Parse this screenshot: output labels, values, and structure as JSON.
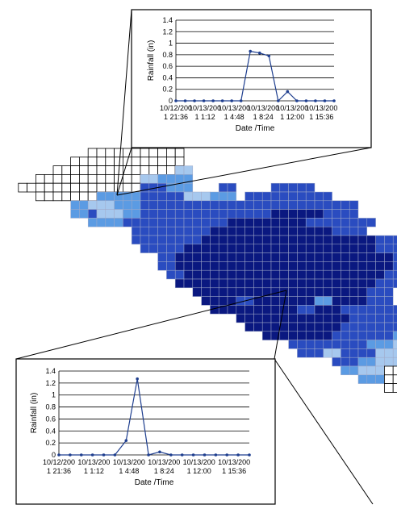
{
  "chart_data": [
    {
      "type": "line",
      "ylabel": "Rainfall (in)",
      "xlabel": "Date /Time",
      "ylim": [
        0,
        1.4
      ],
      "yticks": [
        "0",
        "0.2",
        "0.4",
        "0.6",
        "0.8",
        "1",
        "1.2",
        "1.4"
      ],
      "xtick_labels": [
        [
          "10/12/200",
          "1 21:36"
        ],
        [
          "10/13/200",
          "1 1:12"
        ],
        [
          "10/13/200",
          "1 4:48"
        ],
        [
          "10/13/200",
          "1 8:24"
        ],
        [
          "10/13/200",
          "1 12:00"
        ],
        [
          "10/13/200",
          "1 15:36"
        ]
      ],
      "values": [
        0,
        0,
        0,
        0,
        0,
        0,
        0,
        0,
        0.86,
        0.83,
        0.78,
        0,
        0.16,
        0,
        0,
        0,
        0,
        0
      ],
      "grid": true,
      "color": "#1f3f8f"
    },
    {
      "type": "line",
      "ylabel": "Rainfall (in)",
      "xlabel": "Date /Time",
      "ylim": [
        0,
        1.4
      ],
      "yticks": [
        "0",
        "0.2",
        "0.4",
        "0.6",
        "0.8",
        "1",
        "1.2",
        "1.4"
      ],
      "xtick_labels": [
        [
          "10/12/200",
          "1 21:36"
        ],
        [
          "10/13/200",
          "1 1:12"
        ],
        [
          "10/13/200",
          "1 4:48"
        ],
        [
          "10/13/200",
          "1 8:24"
        ],
        [
          "10/13/200",
          "1 12:00"
        ],
        [
          "10/13/200",
          "1 15:36"
        ]
      ],
      "values": [
        0,
        0,
        0,
        0,
        0,
        0,
        0.24,
        1.27,
        0,
        0.05,
        0,
        0,
        0,
        0,
        0,
        0,
        0,
        0
      ],
      "grid": true,
      "color": "#1f3f8f"
    }
  ],
  "colors": {
    "dark_blue": "#0a1880",
    "medium_blue": "#2a4cc0",
    "light_blue": "#5b9be3",
    "pale_blue": "#a6c8ee",
    "empty_cell": "#ffffff",
    "cell_line": "#a0aac8"
  }
}
